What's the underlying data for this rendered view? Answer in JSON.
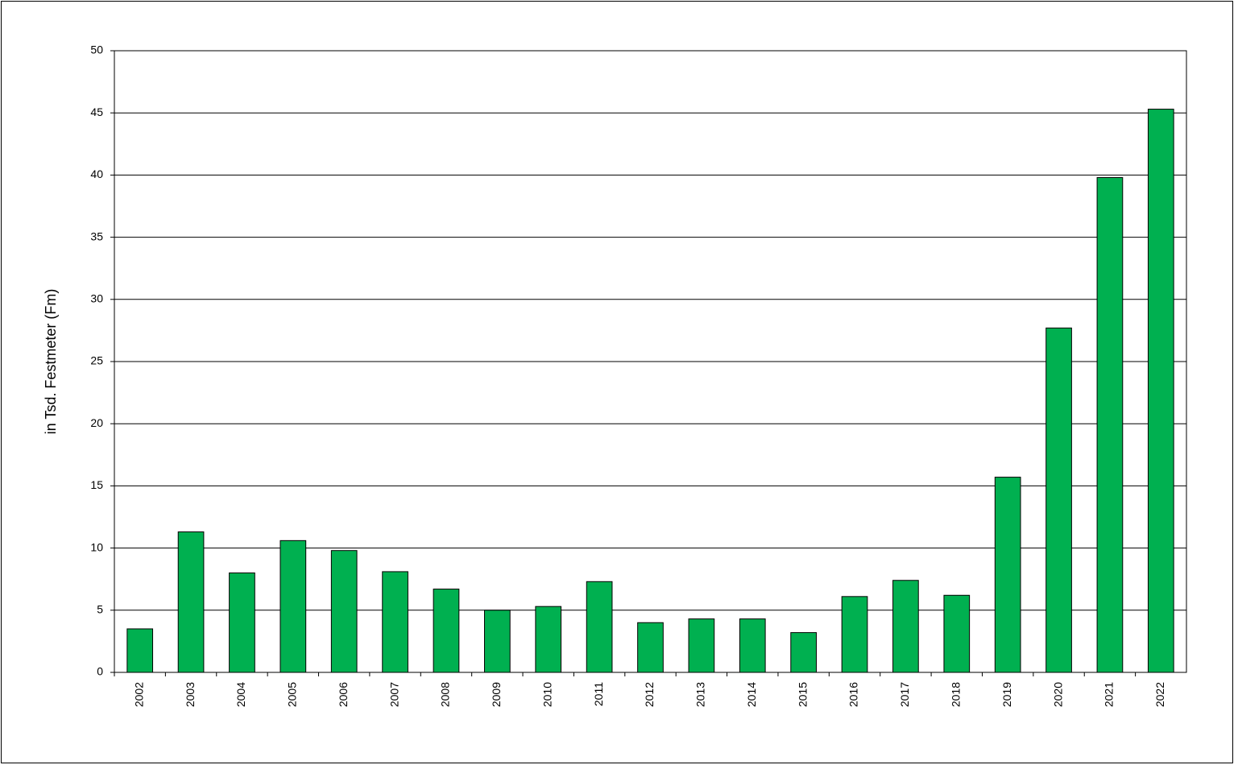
{
  "chart_data": {
    "type": "bar",
    "y_label": "in Tsd. Festmeter (Fm)",
    "categories": [
      "2002",
      "2003",
      "2004",
      "2005",
      "2006",
      "2007",
      "2008",
      "2009",
      "2010",
      "2011",
      "2012",
      "2013",
      "2014",
      "2015",
      "2016",
      "2017",
      "2018",
      "2019",
      "2020",
      "2021",
      "2022"
    ],
    "values": [
      3.5,
      11.3,
      8.0,
      10.6,
      9.8,
      8.1,
      6.7,
      5.0,
      5.3,
      7.3,
      4.0,
      4.3,
      4.3,
      3.2,
      6.1,
      7.4,
      6.2,
      15.7,
      27.7,
      39.8,
      45.3
    ],
    "color": "#00b050",
    "ylim": [
      0,
      50
    ],
    "yticks": [
      0,
      5,
      10,
      15,
      20,
      25,
      30,
      35,
      40,
      45,
      50
    ],
    "grid": true
  }
}
